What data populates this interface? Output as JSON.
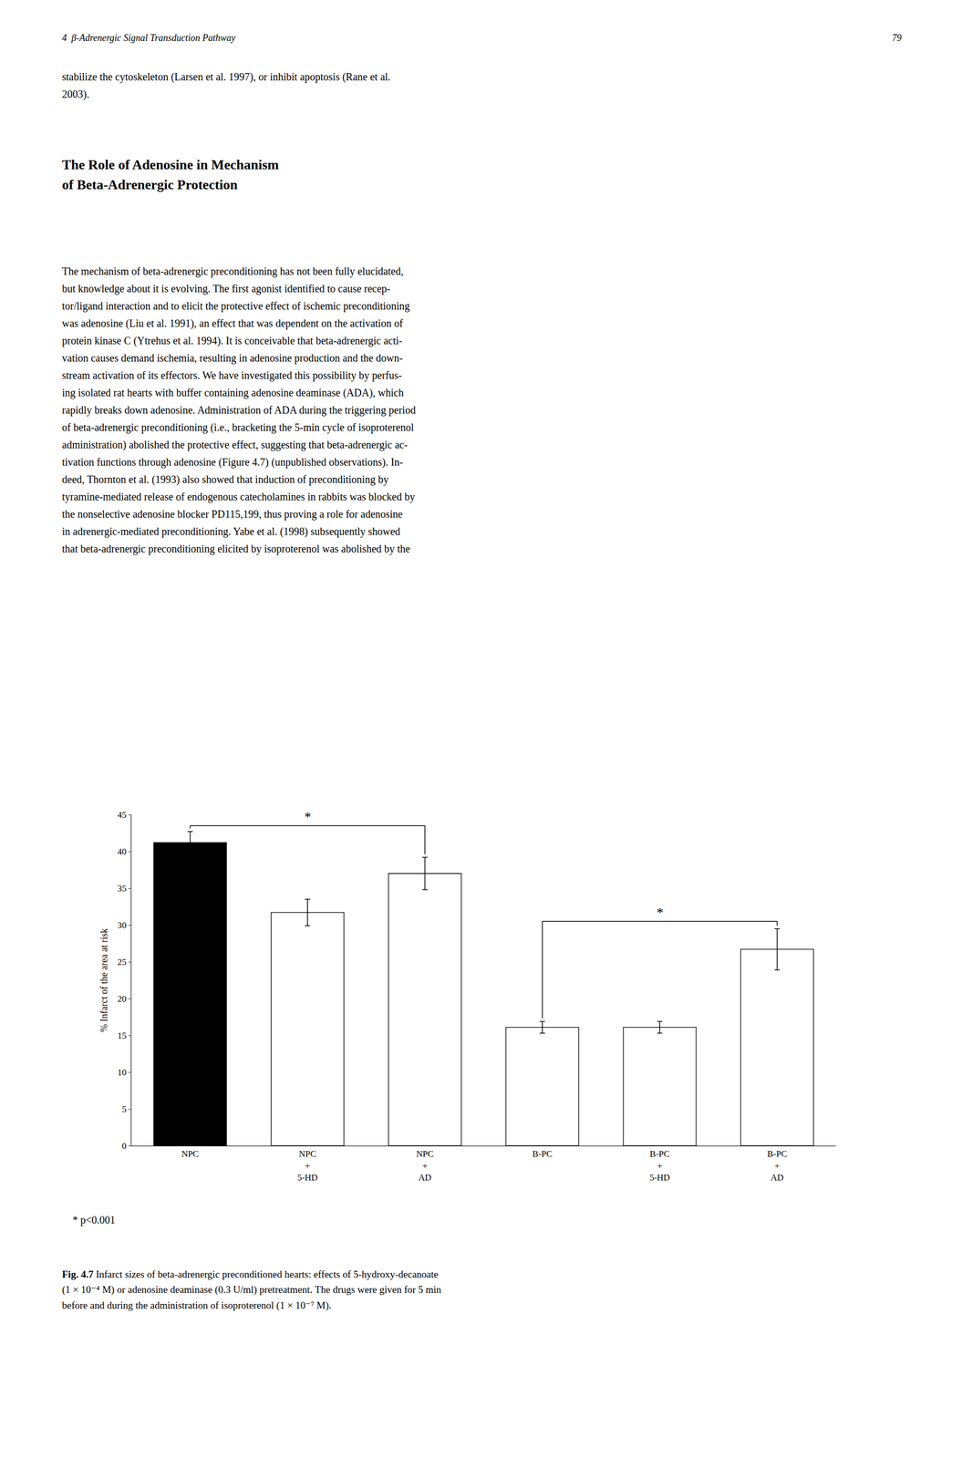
{
  "page": {
    "header_left": "4  β-Adrenergic Signal Transduction Pathway",
    "header_right": "79",
    "intro_text": "stabilize the cytoskeleton (Larsen et al. 1997), or inhibit apoptosis (Rane et al.\n2003).",
    "section_title": "The Role of Adenosine in Mechanism\nof Beta-Adrenergic Protection",
    "body_text": "The mechanism of beta-adrenergic preconditioning has not been fully elucidated,\nbut knowledge about it is evolving. The first agonist identified to cause recep-\ntor/ligand interaction and to elicit the protective effect of ischemic preconditioning\nwas adenosine (Liu et al. 1991), an effect that was dependent on the activation of\nprotein kinase C (Ytrehus et al. 1994). It is conceivable that beta-adrenergic acti-\nvation causes demand ischemia, resulting in adenosine production and the down-\nstream activation of its effectors. We have investigated this possibility by perfus-\ning isolated rat hearts with buffer containing adenosine deaminase (ADA), which\nrapidly breaks down adenosine. Administration of ADA during the triggering period\nof beta-adrenergic preconditioning (i.e., bracketing the 5-min cycle of isoproterenol\nadministration) abolished the protective effect, suggesting that beta-adrenergic ac-\ntivation functions through adenosine (Figure 4.7) (unpublished observations). In-\ndeed, Thornton et al. (1993) also showed that induction of preconditioning by\ntyramine-mediated release of endogenous catecholamines in rabbits was blocked by\nthe nonselective adenosine blocker PD115,199, thus proving a role for adenosine\nin adrenergic-mediated preconditioning. Yabe et al. (1998) subsequently showed\nthat beta-adrenergic preconditioning elicited by isoproterenol was abolished by the",
    "significance_note": "* p<0.001",
    "caption_bold": "Fig. 4.7",
    "caption_text": " Infarct sizes of beta-adrenergic preconditioned hearts: effects of 5-hydroxy-decanoate\n(1 × 10⁻⁴ M) or adenosine deaminase (0.3 U/ml) pretreatment. The drugs were given for 5 min\nbefore and during the administration of isoproterenol (1 × 10⁻⁷ M)."
  },
  "chart_data": {
    "type": "bar",
    "categories": [
      "NPC",
      "NPC\n+\n5-HD",
      "NPC\n+\nAD",
      "B-PC",
      "B-PC\n+\n5-HD",
      "B-PC\n+\nAD"
    ],
    "values": [
      41.2,
      31.7,
      37.0,
      16.1,
      16.1,
      26.7
    ],
    "errors": [
      1.5,
      1.8,
      2.2,
      0.8,
      0.8,
      2.8
    ],
    "colors": [
      "black",
      "white",
      "white",
      "white",
      "white",
      "white"
    ],
    "ylabel": "% Infarct of the area at risk",
    "ylim": [
      0,
      45
    ],
    "yticks": [
      0,
      5,
      10,
      15,
      20,
      25,
      30,
      35,
      40,
      45
    ],
    "grid": false,
    "annotations": [
      {
        "text": "*",
        "between": [
          0,
          2
        ],
        "y": 43.5
      },
      {
        "text": "*",
        "between": [
          3,
          5
        ],
        "y": 30.5
      }
    ]
  }
}
